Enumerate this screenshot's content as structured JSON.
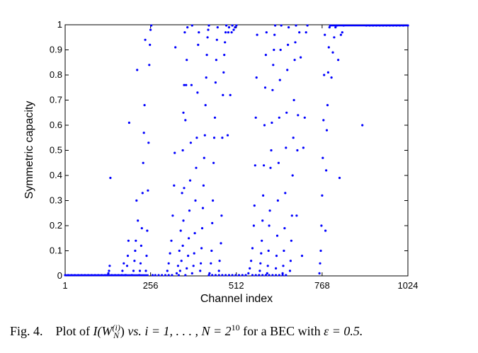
{
  "figure": {
    "caption_label": "Fig. 4.",
    "caption_pre": "Plot of",
    "caption_func": "I(W",
    "caption_sup": "(i)",
    "caption_sub": "N",
    "caption_close": ")",
    "caption_mid": "vs. i = 1, . . . , N = 2",
    "caption_exp": "10",
    "caption_post": "for a BEC with",
    "caption_eps": "ε = 0.5."
  },
  "colors": {
    "marker": "#0000ff",
    "axis": "#000000"
  },
  "chart_data": {
    "type": "scatter",
    "title": "",
    "xlabel": "Channel index",
    "ylabel": "Symmetric capacity",
    "xlim": [
      1,
      1024
    ],
    "ylim": [
      0,
      1
    ],
    "xticks": [
      1,
      256,
      512,
      768,
      1024
    ],
    "yticks": [
      0,
      0.1,
      0.2,
      0.3,
      0.4,
      0.5,
      0.6,
      0.7,
      0.8,
      0.9,
      1
    ],
    "grid": false,
    "series": [
      {
        "name": "",
        "marker": "dot",
        "points": [
          [
            1,
            0.0
          ],
          [
            10,
            0.0
          ],
          [
            20,
            0.0
          ],
          [
            30,
            0.0
          ],
          [
            40,
            0.0
          ],
          [
            50,
            0.0
          ],
          [
            60,
            0.0
          ],
          [
            70,
            0.0
          ],
          [
            80,
            0.0
          ],
          [
            90,
            0.0
          ],
          [
            100,
            0.0
          ],
          [
            110,
            0.0
          ],
          [
            120,
            0.0
          ],
          [
            127,
            0.0
          ],
          [
            130,
            0.01
          ],
          [
            132,
            0.02
          ],
          [
            134,
            0.04
          ],
          [
            136,
            0.39
          ],
          [
            140,
            0.0
          ],
          [
            150,
            0.0
          ],
          [
            160,
            0.0
          ],
          [
            170,
            0.0
          ],
          [
            180,
            0.0
          ],
          [
            172,
            0.02
          ],
          [
            176,
            0.05
          ],
          [
            182,
            0.0
          ],
          [
            186,
            0.04
          ],
          [
            188,
            0.08
          ],
          [
            190,
            0.14
          ],
          [
            192,
            0.61
          ],
          [
            200,
            0.0
          ],
          [
            205,
            0.02
          ],
          [
            208,
            0.06
          ],
          [
            210,
            0.1
          ],
          [
            212,
            0.14
          ],
          [
            214,
            0.3
          ],
          [
            216,
            0.82
          ],
          [
            218,
            0.22
          ],
          [
            222,
            0.0
          ],
          [
            224,
            0.02
          ],
          [
            226,
            0.05
          ],
          [
            228,
            0.12
          ],
          [
            230,
            0.19
          ],
          [
            232,
            0.33
          ],
          [
            234,
            0.45
          ],
          [
            236,
            0.57
          ],
          [
            238,
            0.68
          ],
          [
            240,
            0.94
          ],
          [
            242,
            0.02
          ],
          [
            244,
            0.08
          ],
          [
            246,
            0.18
          ],
          [
            248,
            0.34
          ],
          [
            250,
            0.53
          ],
          [
            252,
            0.84
          ],
          [
            254,
            0.92
          ],
          [
            256,
            0.98
          ],
          [
            258,
            1.0
          ],
          [
            262,
            0.0
          ],
          [
            270,
            0.0
          ],
          [
            280,
            0.0
          ],
          [
            290,
            0.0
          ],
          [
            300,
            0.0
          ],
          [
            310,
            0.0
          ],
          [
            320,
            0.0
          ],
          [
            306,
            0.02
          ],
          [
            310,
            0.05
          ],
          [
            314,
            0.09
          ],
          [
            318,
            0.14
          ],
          [
            322,
            0.24
          ],
          [
            326,
            0.36
          ],
          [
            328,
            0.49
          ],
          [
            330,
            0.91
          ],
          [
            334,
            0.01
          ],
          [
            338,
            0.04
          ],
          [
            342,
            0.1
          ],
          [
            346,
            0.18
          ],
          [
            350,
            0.33
          ],
          [
            352,
            0.5
          ],
          [
            354,
            0.65
          ],
          [
            356,
            0.76
          ],
          [
            358,
            0.97
          ],
          [
            340,
            0.0
          ],
          [
            344,
            0.02
          ],
          [
            348,
            0.06
          ],
          [
            352,
            0.12
          ],
          [
            354,
            0.22
          ],
          [
            356,
            0.35
          ],
          [
            360,
            0.62
          ],
          [
            362,
            0.76
          ],
          [
            364,
            0.86
          ],
          [
            366,
            0.99
          ],
          [
            360,
            0.0
          ],
          [
            364,
            0.03
          ],
          [
            368,
            0.08
          ],
          [
            370,
            0.15
          ],
          [
            372,
            0.26
          ],
          [
            374,
            0.38
          ],
          [
            376,
            0.53
          ],
          [
            378,
            0.76
          ],
          [
            380,
            1.0
          ],
          [
            380,
            0.01
          ],
          [
            384,
            0.04
          ],
          [
            386,
            0.09
          ],
          [
            388,
            0.17
          ],
          [
            390,
            0.3
          ],
          [
            392,
            0.43
          ],
          [
            394,
            0.55
          ],
          [
            396,
            0.73
          ],
          [
            398,
            0.92
          ],
          [
            400,
            0.97
          ],
          [
            404,
            0.02
          ],
          [
            406,
            0.05
          ],
          [
            408,
            0.11
          ],
          [
            410,
            0.19
          ],
          [
            412,
            0.27
          ],
          [
            414,
            0.36
          ],
          [
            416,
            0.47
          ],
          [
            418,
            0.56
          ],
          [
            420,
            0.68
          ],
          [
            422,
            0.79
          ],
          [
            424,
            0.88
          ],
          [
            426,
            0.95
          ],
          [
            428,
            0.98
          ],
          [
            430,
            1.0
          ],
          [
            432,
            0.01
          ],
          [
            436,
            0.05
          ],
          [
            438,
            0.1
          ],
          [
            440,
            0.21
          ],
          [
            442,
            0.3
          ],
          [
            444,
            0.45
          ],
          [
            446,
            0.55
          ],
          [
            448,
            0.63
          ],
          [
            450,
            0.77
          ],
          [
            452,
            0.86
          ],
          [
            454,
            0.94
          ],
          [
            456,
            0.99
          ],
          [
            460,
            0.02
          ],
          [
            462,
            0.06
          ],
          [
            466,
            0.13
          ],
          [
            468,
            0.24
          ],
          [
            470,
            0.55
          ],
          [
            472,
            0.72
          ],
          [
            474,
            0.81
          ],
          [
            476,
            0.88
          ],
          [
            478,
            0.93
          ],
          [
            480,
            0.97
          ],
          [
            482,
            1.0
          ],
          [
            486,
            0.56
          ],
          [
            488,
            0.97
          ],
          [
            490,
            0.99
          ],
          [
            494,
            0.72
          ],
          [
            498,
            0.97
          ],
          [
            500,
            1.0
          ],
          [
            504,
            0.98
          ],
          [
            508,
            0.99
          ],
          [
            512,
            1.0
          ],
          [
            430,
            0.0
          ],
          [
            440,
            0.0
          ],
          [
            450,
            0.0
          ],
          [
            460,
            0.0
          ],
          [
            470,
            0.0
          ],
          [
            480,
            0.0
          ],
          [
            490,
            0.0
          ],
          [
            500,
            0.0
          ],
          [
            510,
            0.0
          ],
          [
            520,
            0.0
          ],
          [
            530,
            0.0
          ],
          [
            540,
            0.0
          ],
          [
            548,
            0.01
          ],
          [
            552,
            0.03
          ],
          [
            556,
            0.06
          ],
          [
            560,
            0.11
          ],
          [
            564,
            0.2
          ],
          [
            566,
            0.28
          ],
          [
            568,
            0.44
          ],
          [
            570,
            0.63
          ],
          [
            572,
            0.79
          ],
          [
            574,
            0.96
          ],
          [
            580,
            0.0
          ],
          [
            582,
            0.02
          ],
          [
            584,
            0.05
          ],
          [
            586,
            0.09
          ],
          [
            588,
            0.14
          ],
          [
            590,
            0.22
          ],
          [
            592,
            0.32
          ],
          [
            594,
            0.44
          ],
          [
            596,
            0.6
          ],
          [
            598,
            0.75
          ],
          [
            600,
            0.88
          ],
          [
            602,
            0.97
          ],
          [
            604,
            0.01
          ],
          [
            606,
            0.04
          ],
          [
            608,
            0.1
          ],
          [
            610,
            0.2
          ],
          [
            612,
            0.26
          ],
          [
            614,
            0.43
          ],
          [
            616,
            0.5
          ],
          [
            618,
            0.61
          ],
          [
            620,
            0.74
          ],
          [
            622,
            0.84
          ],
          [
            624,
            0.9
          ],
          [
            626,
            0.96
          ],
          [
            628,
            1.0
          ],
          [
            630,
            0.03
          ],
          [
            632,
            0.08
          ],
          [
            634,
            0.16
          ],
          [
            636,
            0.3
          ],
          [
            638,
            0.45
          ],
          [
            640,
            0.63
          ],
          [
            642,
            0.78
          ],
          [
            644,
            0.9
          ],
          [
            646,
            1.0
          ],
          [
            650,
            0.01
          ],
          [
            652,
            0.04
          ],
          [
            654,
            0.1
          ],
          [
            656,
            0.19
          ],
          [
            658,
            0.33
          ],
          [
            660,
            0.51
          ],
          [
            662,
            0.65
          ],
          [
            664,
            0.82
          ],
          [
            666,
            0.92
          ],
          [
            668,
            0.99
          ],
          [
            672,
            0.02
          ],
          [
            674,
            0.06
          ],
          [
            676,
            0.14
          ],
          [
            678,
            0.24
          ],
          [
            680,
            0.4
          ],
          [
            682,
            0.55
          ],
          [
            684,
            0.7
          ],
          [
            686,
            0.86
          ],
          [
            688,
            0.93
          ],
          [
            690,
            1.0
          ],
          [
            692,
            0.24
          ],
          [
            694,
            0.5
          ],
          [
            696,
            0.64
          ],
          [
            700,
            0.97
          ],
          [
            704,
            0.87
          ],
          [
            708,
            0.08
          ],
          [
            712,
            0.51
          ],
          [
            716,
            0.63
          ],
          [
            720,
            0.97
          ],
          [
            724,
            1.0
          ],
          [
            560,
            0.0
          ],
          [
            570,
            0.0
          ],
          [
            580,
            0.0
          ],
          [
            590,
            0.0
          ],
          [
            600,
            0.0
          ],
          [
            610,
            0.0
          ],
          [
            620,
            0.0
          ],
          [
            630,
            0.0
          ],
          [
            640,
            0.0
          ],
          [
            650,
            0.0
          ],
          [
            660,
            0.0
          ],
          [
            760,
            0.01
          ],
          [
            762,
            0.05
          ],
          [
            764,
            0.1
          ],
          [
            766,
            0.2
          ],
          [
            768,
            0.32
          ],
          [
            770,
            0.47
          ],
          [
            772,
            0.62
          ],
          [
            774,
            0.8
          ],
          [
            776,
            0.96
          ],
          [
            778,
            0.18
          ],
          [
            780,
            0.42
          ],
          [
            782,
            0.58
          ],
          [
            784,
            0.68
          ],
          [
            786,
            0.81
          ],
          [
            788,
            0.91
          ],
          [
            790,
            0.99
          ],
          [
            792,
            1.0
          ],
          [
            796,
            0.79
          ],
          [
            800,
            0.89
          ],
          [
            804,
            0.95
          ],
          [
            808,
            0.99
          ],
          [
            812,
            1.0
          ],
          [
            816,
            0.86
          ],
          [
            820,
            0.39
          ],
          [
            824,
            0.96
          ],
          [
            828,
            0.97
          ],
          [
            832,
            1.0
          ],
          [
            888,
            0.6
          ],
          [
            900,
            1.0
          ],
          [
            910,
            1.0
          ],
          [
            920,
            1.0
          ],
          [
            930,
            1.0
          ],
          [
            940,
            1.0
          ],
          [
            950,
            1.0
          ],
          [
            960,
            1.0
          ],
          [
            970,
            1.0
          ],
          [
            980,
            1.0
          ],
          [
            990,
            1.0
          ],
          [
            1000,
            1.0
          ],
          [
            1010,
            1.0
          ],
          [
            1024,
            1.0
          ]
        ]
      }
    ]
  }
}
